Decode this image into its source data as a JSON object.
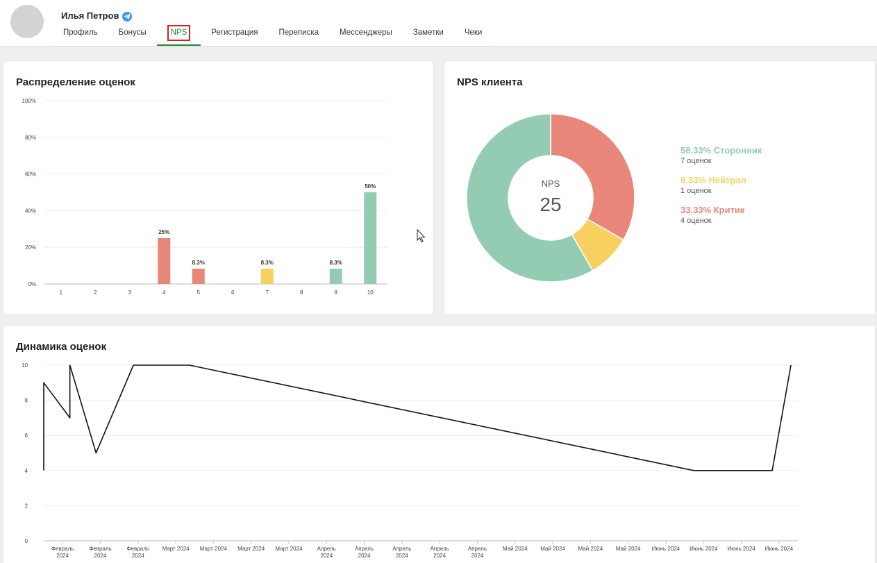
{
  "header": {
    "user_name": "Илья Петров",
    "tabs": [
      {
        "label": "Профиль"
      },
      {
        "label": "Бонусы"
      },
      {
        "label": "NPS",
        "active": true
      },
      {
        "label": "Регистрация"
      },
      {
        "label": "Переписка"
      },
      {
        "label": "Мессенджеры"
      },
      {
        "label": "Заметки"
      },
      {
        "label": "Чеки"
      }
    ]
  },
  "distribution": {
    "title": "Распределение оценок"
  },
  "nps": {
    "title": "NPS клиента",
    "center_label": "NPS",
    "center_value": "25",
    "legend": [
      {
        "title": "58.33% Сторонник",
        "sub": "7 оценок",
        "color": "#93ccb2"
      },
      {
        "title": "8.33% Нейтрал",
        "sub": "1 оценок",
        "color": "#f7d060"
      },
      {
        "title": "33.33% Критик",
        "sub": "4 оценок",
        "color": "#e9867a"
      }
    ]
  },
  "dynamics": {
    "title": "Динамика оценок"
  },
  "chart_data": [
    {
      "type": "bar",
      "categories": [
        "1",
        "2",
        "3",
        "4",
        "5",
        "6",
        "7",
        "8",
        "9",
        "10"
      ],
      "values": [
        0,
        0,
        0,
        25,
        8.3,
        0,
        8.3,
        0,
        8.3,
        50
      ],
      "data_labels": [
        "",
        "",
        "",
        "25%",
        "8.3%",
        "",
        "8.3%",
        "",
        "8.3%",
        "50%"
      ],
      "colors": [
        "#e9867a",
        "#e9867a",
        "#e9867a",
        "#e9867a",
        "#e9867a",
        "#e9867a",
        "#f7d060",
        "#f7d060",
        "#93ccb2",
        "#93ccb2"
      ],
      "yticks": [
        "0%",
        "20%",
        "40%",
        "60%",
        "80%",
        "100%"
      ],
      "ylim": [
        0,
        100
      ],
      "title": "Распределение оценок"
    },
    {
      "type": "pie",
      "labels": [
        "Сторонник",
        "Нейтрал",
        "Критик"
      ],
      "values": [
        58.33,
        8.33,
        33.33
      ],
      "colors": [
        "#93ccb2",
        "#f7d060",
        "#e9867a"
      ],
      "title": "NPS клиента"
    },
    {
      "type": "line",
      "title": "Динамика оценок",
      "ylim": [
        0,
        10
      ],
      "yticks": [
        "0",
        "2",
        "4",
        "6",
        "8",
        "10"
      ],
      "xticks": [
        "Февраль 2024",
        "Февраль 2024",
        "Февраль 2024",
        "Март 2024",
        "Март 2024",
        "Март 2024",
        "Март 2024",
        "Апрель 2024",
        "Апрель 2024",
        "Апрель 2024",
        "Апрель 2024",
        "Апрель 2024",
        "Май 2024",
        "Май 2024",
        "Май 2024",
        "Май 2024",
        "Июнь 2024",
        "Июнь 2024",
        "Июнь 2024",
        "Июнь 2024"
      ],
      "x": [
        0.0,
        0.0,
        0.035,
        0.035,
        0.07,
        0.12,
        0.195,
        0.87,
        0.975,
        1.0
      ],
      "values": [
        4,
        9,
        7,
        10,
        5,
        10,
        10,
        4,
        4,
        10
      ],
      "color": "#111111"
    }
  ]
}
